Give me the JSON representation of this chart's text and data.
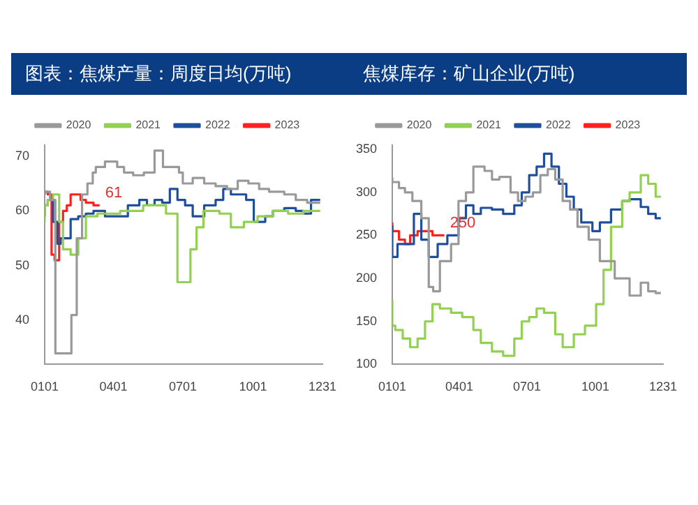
{
  "chart_data": [
    {
      "type": "step",
      "title": "图表：焦煤产量：周度日均(万吨)",
      "xlim": [
        "--01-01",
        "--12-31"
      ],
      "xticks": [
        {
          "value": "--01-01",
          "label": "0101"
        },
        {
          "value": "--04-01",
          "label": "0401"
        },
        {
          "value": "--07-01",
          "label": "0701"
        },
        {
          "value": "--10-01",
          "label": "1001"
        },
        {
          "value": "--12-31",
          "label": "1231"
        }
      ],
      "ylim": [
        32,
        72
      ],
      "yticks": [
        40,
        50,
        60,
        70
      ],
      "grid": false,
      "legend": "top",
      "marker": "none",
      "annotations": [
        {
          "text": "61",
          "x": "--03-14",
          "y": 61
        }
      ],
      "series": [
        {
          "name": "2020",
          "color": "#999999",
          "x": [
            "--01-01",
            "--01-08",
            "--01-15",
            "--01-22",
            "--02-05",
            "--02-12",
            "--02-19",
            "--02-26",
            "--03-05",
            "--03-09",
            "--03-21",
            "--04-06",
            "--04-15",
            "--04-27",
            "--05-11",
            "--05-25",
            "--06-05",
            "--06-26",
            "--07-01",
            "--07-14",
            "--07-29",
            "--08-13",
            "--08-28",
            "--09-11",
            "--09-25",
            "--10-09",
            "--10-22",
            "--11-11",
            "--11-26",
            "--12-11",
            "--12-22",
            "--12-28"
          ],
          "values": [
            63,
            63.5,
            62,
            34,
            34,
            41,
            55,
            63,
            65,
            67,
            68,
            69,
            68,
            67,
            66.5,
            67,
            71,
            68,
            67,
            65,
            66,
            65,
            64.5,
            64,
            65.5,
            65,
            64,
            63.5,
            63,
            62,
            61.5,
            61.5
          ]
        },
        {
          "name": "2021",
          "color": "#92d050",
          "x": [
            "--01-01",
            "--01-05",
            "--01-12",
            "--01-20",
            "--01-25",
            "--02-04",
            "--02-14",
            "--02-24",
            "--03-11",
            "--04-10",
            "--05-10",
            "--06-09",
            "--06-24",
            "--07-01",
            "--07-11",
            "--07-19",
            "--07-28",
            "--08-18",
            "--09-02",
            "--09-19",
            "--10-07",
            "--10-27",
            "--11-16",
            "--12-06",
            "--12-28"
          ],
          "values": [
            58,
            61,
            62,
            63,
            58,
            53,
            52,
            55,
            59,
            59.5,
            60,
            61,
            59.5,
            47,
            47,
            53,
            57,
            60,
            59.5,
            57,
            58,
            59,
            60,
            59.5,
            60
          ]
        },
        {
          "name": "2022",
          "color": "#1f4e9c",
          "x": [
            "--01-01",
            "--01-05",
            "--01-12",
            "--01-18",
            "--01-22",
            "--02-04",
            "--02-14",
            "--02-24",
            "--03-06",
            "--03-21",
            "--04-05",
            "--04-20",
            "--05-05",
            "--05-15",
            "--05-25",
            "--06-04",
            "--06-14",
            "--06-24",
            "--07-04",
            "--07-14",
            "--07-29",
            "--08-13",
            "--08-23",
            "--09-02",
            "--09-12",
            "--09-22",
            "--10-02",
            "--10-17",
            "--10-27",
            "--11-11",
            "--11-26",
            "--12-06",
            "--12-16",
            "--12-21",
            "--12-28"
          ],
          "values": [
            59,
            61,
            62,
            58,
            54,
            55,
            58.5,
            59,
            59.5,
            60,
            59,
            59,
            61,
            62,
            61,
            62,
            61.5,
            64,
            62,
            61,
            59,
            61,
            62,
            64,
            63,
            63,
            62,
            58,
            59,
            60,
            60.5,
            60,
            59.5,
            62,
            62
          ]
        },
        {
          "name": "2023",
          "color": "#ff2020",
          "x": [
            "--01-01",
            "--01-05",
            "--01-10",
            "--01-14",
            "--01-20",
            "--01-25",
            "--01-30",
            "--02-04",
            "--02-09",
            "--02-17",
            "--02-24",
            "--03-06",
            "--03-14"
          ],
          "values": [
            63,
            63.5,
            63,
            52,
            51,
            58,
            60,
            61,
            63,
            63,
            62,
            61.5,
            61
          ]
        }
      ]
    },
    {
      "type": "step",
      "title": "焦煤库存：矿山企业(万吨)",
      "xlim": [
        "--01-01",
        "--12-31"
      ],
      "xticks": [
        {
          "value": "--01-01",
          "label": "0101"
        },
        {
          "value": "--04-01",
          "label": "0401"
        },
        {
          "value": "--07-01",
          "label": "0701"
        },
        {
          "value": "--10-01",
          "label": "1001"
        },
        {
          "value": "--12-31",
          "label": "1231"
        }
      ],
      "ylim": [
        100,
        355
      ],
      "yticks": [
        100,
        150,
        200,
        250,
        300,
        350
      ],
      "grid": false,
      "legend": "top",
      "marker": "none",
      "annotations": [
        {
          "text": "250",
          "x": "--03-12",
          "y": 250
        }
      ],
      "series": [
        {
          "name": "2020",
          "color": "#999999",
          "x": [
            "--01-01",
            "--01-10",
            "--01-18",
            "--01-28",
            "--02-09",
            "--02-19",
            "--02-25",
            "--03-06",
            "--03-21",
            "--03-31",
            "--04-10",
            "--04-20",
            "--05-05",
            "--05-15",
            "--05-25",
            "--06-09",
            "--06-19",
            "--06-29",
            "--07-09",
            "--07-19",
            "--07-29",
            "--08-08",
            "--08-18",
            "--08-28",
            "--09-07",
            "--09-22",
            "--10-07",
            "--10-27",
            "--11-16",
            "--12-01",
            "--12-11",
            "--12-21",
            "--12-28"
          ],
          "values": [
            317,
            312,
            305,
            300,
            290,
            270,
            190,
            185,
            220,
            240,
            290,
            300,
            330,
            325,
            315,
            318,
            300,
            290,
            295,
            300,
            320,
            327,
            315,
            290,
            280,
            260,
            245,
            220,
            200,
            180,
            195,
            185,
            183
          ]
        },
        {
          "name": "2021",
          "color": "#92d050",
          "x": [
            "--01-01",
            "--01-05",
            "--01-15",
            "--01-25",
            "--02-04",
            "--02-14",
            "--02-24",
            "--03-06",
            "--03-21",
            "--04-05",
            "--04-20",
            "--04-30",
            "--05-15",
            "--05-30",
            "--06-14",
            "--06-24",
            "--07-04",
            "--07-14",
            "--07-24",
            "--08-08",
            "--08-18",
            "--09-02",
            "--09-17",
            "--10-02",
            "--10-12",
            "--10-22",
            "--11-06",
            "--11-16",
            "--12-01",
            "--12-11",
            "--12-21",
            "--12-28"
          ],
          "values": [
            175,
            145,
            140,
            130,
            120,
            130,
            150,
            170,
            165,
            160,
            155,
            140,
            125,
            115,
            110,
            130,
            150,
            155,
            165,
            160,
            135,
            120,
            135,
            145,
            170,
            210,
            260,
            290,
            300,
            320,
            310,
            295
          ]
        },
        {
          "name": "2022",
          "color": "#1f4e9c",
          "x": [
            "--01-01",
            "--01-08",
            "--01-18",
            "--01-30",
            "--02-09",
            "--02-19",
            "--03-03",
            "--03-16",
            "--03-31",
            "--04-10",
            "--04-20",
            "--04-30",
            "--05-15",
            "--05-30",
            "--06-14",
            "--06-24",
            "--07-04",
            "--07-14",
            "--07-24",
            "--08-03",
            "--08-13",
            "--08-23",
            "--09-02",
            "--09-12",
            "--09-27",
            "--10-07",
            "--10-22",
            "--11-06",
            "--11-16",
            "--12-01",
            "--12-11",
            "--12-21",
            "--12-28"
          ],
          "values": [
            262,
            225,
            240,
            240,
            275,
            245,
            225,
            240,
            250,
            270,
            285,
            275,
            282,
            280,
            275,
            285,
            300,
            320,
            330,
            345,
            330,
            310,
            295,
            280,
            265,
            255,
            265,
            280,
            290,
            292,
            283,
            275,
            270
          ]
        },
        {
          "name": "2023",
          "color": "#ff2020",
          "x": [
            "--01-01",
            "--01-10",
            "--01-18",
            "--01-25",
            "--02-04",
            "--02-14",
            "--02-24",
            "--03-06",
            "--03-12"
          ],
          "values": [
            265,
            255,
            245,
            240,
            250,
            255,
            255,
            250,
            250
          ]
        }
      ]
    }
  ]
}
